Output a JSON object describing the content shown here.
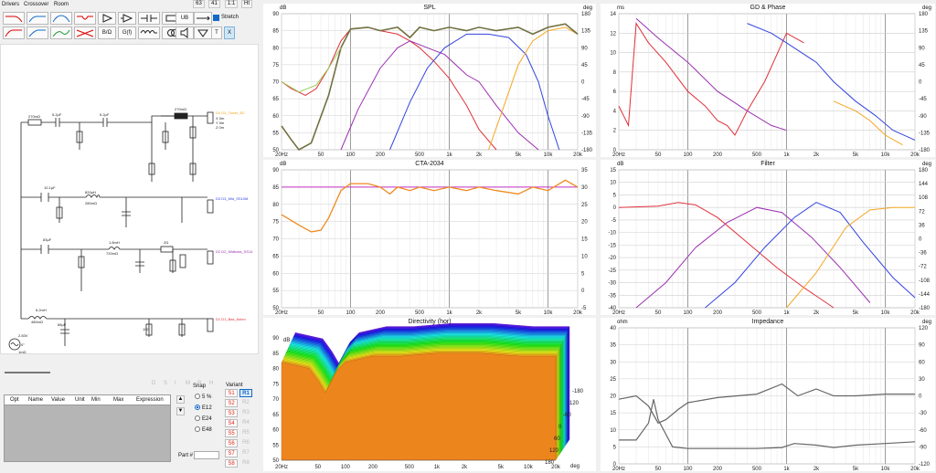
{
  "menu": {
    "items": [
      "Drivers",
      "Crossover",
      "Room"
    ],
    "top_buttons": [
      "63",
      "41",
      "1:1",
      "Ht"
    ]
  },
  "toolbar": {
    "extra_labels": [
      "B/Ω",
      "G(f)",
      "UB",
      "T",
      "X"
    ],
    "stretch_label": "Stretch"
  },
  "schematic": {
    "component_labels": [
      "270mΩ",
      "5.2μF",
      "5.2μF",
      "270mΩ",
      "10.1μF",
      "820μH",
      "280mΩ",
      "83μF",
      "1.8mH",
      "720mΩ",
      "2Ω",
      "6.2mH",
      "480mΩ",
      "68μF",
      "10Ω"
    ],
    "driver_labels": [
      "D4 D4_Tweet_BC",
      "D3 D3_Mid_SS10M",
      "D2 D2_Midbass_SS14",
      "D1 D1_Bas_8ohm"
    ],
    "driver_sublabels": [
      "X 0m",
      "Y 0m",
      "Z 0m"
    ],
    "source_labels": [
      "2.83V",
      "0°",
      "1mΩ"
    ]
  },
  "bottom_left": {
    "status_letters": [
      "D",
      "S",
      "I",
      "M",
      "R",
      "H"
    ],
    "opt_columns": [
      "Opt",
      "Name",
      "Value",
      "Unit",
      "Min",
      "Max",
      "Expression"
    ],
    "snap": {
      "label": "Snap",
      "options": [
        "5 %",
        "E12",
        "E24",
        "E48"
      ],
      "selected": "E12"
    },
    "part_label": "Part #",
    "variant": {
      "label": "Variant",
      "selected": [
        "S1",
        "S2",
        "S3",
        "S4",
        "S5",
        "S6",
        "S7",
        "S8"
      ],
      "refs": [
        "R1",
        "R2",
        "R3",
        "R4",
        "R5",
        "R6",
        "R7",
        "R8"
      ],
      "active": "R1"
    }
  },
  "freq_ticks": [
    "20Hz",
    "50",
    "100",
    "200",
    "500",
    "1k",
    "2k",
    "5k",
    "10k",
    "20k"
  ],
  "charts": {
    "spl": {
      "title": "SPL",
      "left_unit": "dB",
      "right_unit": "deg",
      "left_ticks": [
        "90",
        "85",
        "80",
        "75",
        "70",
        "65",
        "60",
        "55",
        "50"
      ],
      "right_ticks": [
        "180",
        "135",
        "90",
        "45",
        "0",
        "-45",
        "-90",
        "-135",
        "-180"
      ]
    },
    "gd": {
      "title": "GD & Phase",
      "left_unit": "ms",
      "right_unit": "deg",
      "left_ticks": [
        "14",
        "12",
        "10",
        "8",
        "6",
        "4",
        "2",
        "0"
      ],
      "right_ticks": [
        "180",
        "135",
        "90",
        "45",
        "0",
        "-45",
        "-90",
        "-135",
        "-180"
      ]
    },
    "cta": {
      "title": "CTA-2034",
      "left_unit": "dB",
      "left_ticks": [
        "90",
        "85",
        "80",
        "75",
        "70",
        "65",
        "60",
        "55",
        "50"
      ],
      "right_ticks": [
        "35",
        "30",
        "25",
        "20",
        "15",
        "10",
        "5",
        "0",
        "-5"
      ]
    },
    "filter": {
      "title": "Filter",
      "left_unit": "dB",
      "right_unit": "deg",
      "left_ticks": [
        "15",
        "10",
        "5",
        "0",
        "-5",
        "-10",
        "-15",
        "-20",
        "-25",
        "-30",
        "-35",
        "-40"
      ],
      "right_ticks": [
        "180",
        "144",
        "108",
        "72",
        "36",
        "0",
        "-36",
        "-72",
        "-108",
        "-144",
        "-180"
      ]
    },
    "directivity": {
      "title": "Directivity (hor)",
      "left_ticks": [
        "90",
        "85",
        "80",
        "75",
        "70",
        "65",
        "60",
        "55",
        "50"
      ],
      "angle_ticks": [
        "-180",
        "-120",
        "-60",
        "0",
        "60",
        "120",
        "180"
      ],
      "angle_unit": "deg",
      "dB_label": "dB"
    },
    "impedance": {
      "title": "Impedance",
      "left_unit": "ohm",
      "right_unit": "deg",
      "left_ticks": [
        "40",
        "35",
        "30",
        "25",
        "20",
        "15",
        "10",
        "5",
        "0"
      ],
      "right_ticks": [
        "120",
        "90",
        "60",
        "30",
        "0",
        "-30",
        "-60",
        "-90",
        "-120"
      ]
    }
  },
  "colors": {
    "tweeter": "#f5a623",
    "mid": "#3344dd",
    "midbass": "#9b30b0",
    "bass": "#e0303a",
    "sum": "#707040",
    "cta": "#f08a20",
    "cta_ref": "#c030c0",
    "impedance": "#666666"
  }
}
